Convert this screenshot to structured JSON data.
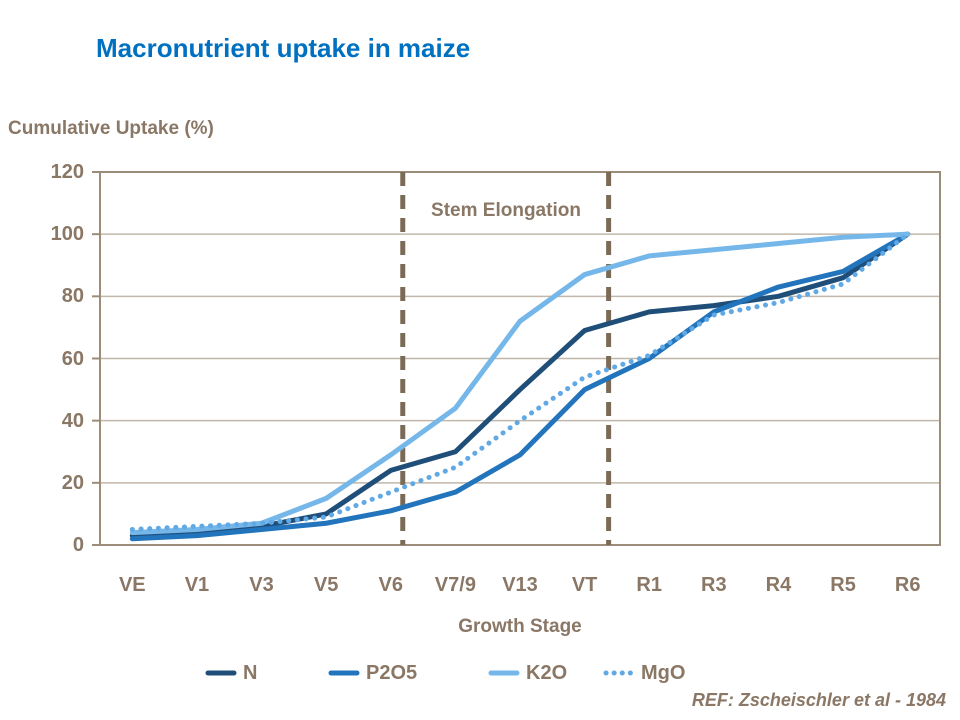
{
  "title": {
    "text": "Macronutrient uptake in maize",
    "color": "#0070C0"
  },
  "footer": {
    "reference": "REF: Zscheischler et al - 1984"
  },
  "chart_data": {
    "type": "line",
    "title": "Macronutrient uptake in maize",
    "xlabel": "Growth Stage",
    "ylabel": "Cumulative Uptake (%)",
    "ylim": [
      0,
      120
    ],
    "yticks": [
      0,
      20,
      40,
      60,
      80,
      100,
      120
    ],
    "grid": true,
    "legend_position": "bottom",
    "categories": [
      "VE",
      "V1",
      "V3",
      "V5",
      "V6",
      "V7/9",
      "V13",
      "VT",
      "R1",
      "R3",
      "R4",
      "R5",
      "R6"
    ],
    "series": [
      {
        "name": "N",
        "color": "#1F4E79",
        "style": "solid",
        "values": [
          3,
          4,
          6,
          10,
          24,
          30,
          50,
          69,
          75,
          77,
          80,
          86,
          100
        ]
      },
      {
        "name": "P2O5",
        "color": "#2274BC",
        "style": "solid",
        "values": [
          2,
          3,
          5,
          7,
          11,
          17,
          29,
          50,
          60,
          75,
          83,
          88,
          100
        ]
      },
      {
        "name": "K2O",
        "color": "#76B7EA",
        "style": "solid",
        "values": [
          4,
          5,
          7,
          15,
          29,
          44,
          72,
          87,
          93,
          95,
          97,
          99,
          100
        ]
      },
      {
        "name": "MgO",
        "color": "#61A9E4",
        "style": "dotted",
        "values": [
          5,
          6,
          7,
          9,
          17,
          25,
          40,
          54,
          61,
          74,
          78,
          84,
          100
        ]
      }
    ],
    "annotation": {
      "label": "Stem Elongation",
      "from_category": "V6",
      "to_category": "VT"
    },
    "colors": {
      "text_brown": "#8A7765",
      "grid": "#C0B7AA",
      "axis_border": "#9C8D7B",
      "dash_line": "#7B6B56",
      "title_blue": "#0070C0"
    }
  }
}
